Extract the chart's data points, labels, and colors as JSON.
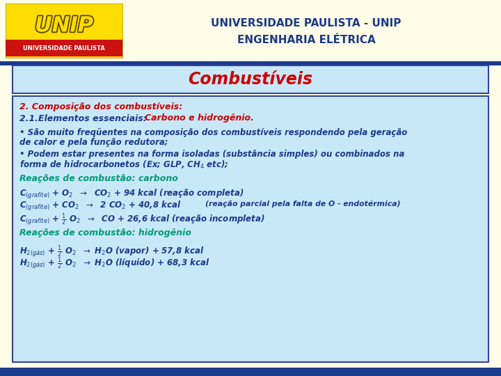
{
  "bg_color": "#FFFDE7",
  "blue_bar_color": "#1a3a8a",
  "header_title_line1": "UNIVERSIDADE PAULISTA - UNIP",
  "header_title_line2": "ENGENHARIA ELÉTRICA",
  "header_title_color": "#1a3a8a",
  "slide_title": "Combustíveis",
  "slide_title_color": "#CC0000",
  "content_bg": "#C8E8F8",
  "content_border": "#334499",
  "title_box_bg": "#C8E8F8",
  "body_box_bg": "#C8E8F8",
  "section1_color": "#CC0000",
  "section1_text": "2. Composição dos combustíveis:",
  "section2_blue": "2.1.Elementos essenciais: ",
  "section2_red": "Carbono e hidrogênio.",
  "section2_blue_color": "#1a3a8a",
  "section2_red_color": "#CC0000",
  "bullet_color": "#1a3a8a",
  "reactions_header_color": "#009977",
  "reactions_carbon": "Reações de combustão: carbono",
  "reactions_hydrogen": "Reações de combustão: hidrogênio",
  "reaction_text_color": "#1a3a8a",
  "logo_yellow": "#FFDD00",
  "logo_red": "#CC1111",
  "logo_text_yellow": "#FFE000",
  "logo_outline": "#886600"
}
